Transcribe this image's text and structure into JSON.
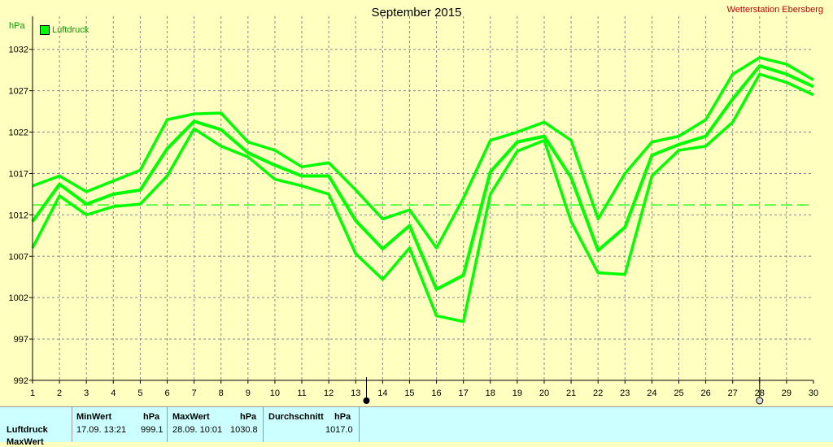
{
  "header": {
    "title": "September 2015",
    "station": "Wetterstation Ebersberg",
    "unit": "hPa",
    "legend_label": "Luftdruck"
  },
  "chart_data": {
    "type": "line",
    "x": [
      1,
      2,
      3,
      4,
      5,
      6,
      7,
      8,
      9,
      10,
      11,
      12,
      13,
      14,
      15,
      16,
      17,
      18,
      19,
      20,
      21,
      22,
      23,
      24,
      25,
      26,
      27,
      28,
      29,
      30
    ],
    "ylim": [
      992,
      1036
    ],
    "yticks": [
      992,
      997,
      1002,
      1007,
      1012,
      1017,
      1022,
      1027,
      1032
    ],
    "reference_line": 1013.2,
    "color": "#00ff00",
    "series": [
      {
        "values": [
          1015.5,
          1016.7,
          1014.8,
          1016.1,
          1017.4,
          1023.5,
          1024.2,
          1024.3,
          1020.8,
          1019.8,
          1017.8,
          1018.3,
          1015.0,
          1011.5,
          1012.6,
          1008.0,
          1014.0,
          1021.0,
          1022.0,
          1023.2,
          1021.0,
          1011.5,
          1017.0,
          1020.8,
          1021.5,
          1023.5,
          1029.0,
          1031.0,
          1030.2,
          1028.3
        ]
      },
      {
        "values": [
          1011.2,
          1015.7,
          1013.3,
          1014.5,
          1015.0,
          1020.0,
          1023.3,
          1022.3,
          1019.5,
          1018.0,
          1016.7,
          1016.7,
          1011.3,
          1007.9,
          1010.7,
          1003.0,
          1004.7,
          1017.2,
          1020.8,
          1021.5,
          1016.5,
          1007.7,
          1010.5,
          1019.2,
          1020.5,
          1021.5,
          1026.0,
          1030.0,
          1029.0,
          1027.5
        ]
      },
      {
        "values": [
          1008.0,
          1014.3,
          1012.0,
          1013.0,
          1013.3,
          1016.7,
          1022.4,
          1020.3,
          1019.0,
          1016.3,
          1015.5,
          1014.5,
          1007.3,
          1004.2,
          1008.0,
          999.8,
          999.1,
          1014.5,
          1019.7,
          1021.0,
          1011.2,
          1005.0,
          1004.8,
          1016.7,
          1019.8,
          1020.3,
          1023.2,
          1029.0,
          1028.0,
          1026.5
        ]
      }
    ]
  },
  "stats": {
    "row_label": "Luftdruck",
    "row2_label": "MaxWert",
    "min_header": "MinWert",
    "max_header": "MaxWert",
    "avg_header": "Durchschnitt",
    "unit": "hPa",
    "min_time": "17.09.  13:21",
    "min_value": "999.1",
    "max_time": "28.09.  10:01",
    "max_value": "1030.8",
    "avg_value": "1017.0"
  }
}
